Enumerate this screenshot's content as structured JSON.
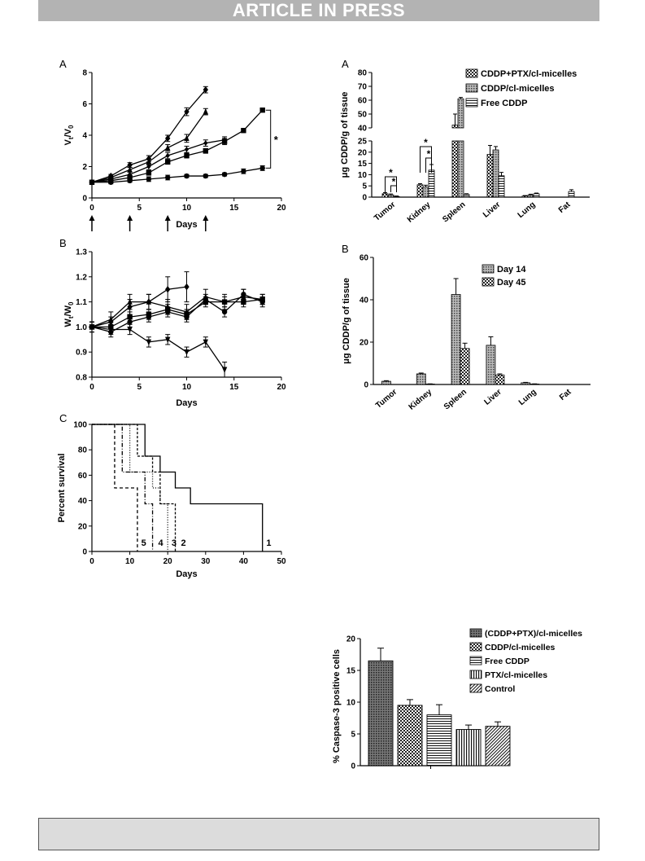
{
  "header": {
    "banner": "ARTICLE IN PRESS"
  },
  "chart_data": [
    {
      "id": "left-A",
      "panel_label": "A",
      "type": "line",
      "xlabel": "Days",
      "ylabel_main": "V",
      "ylabel_sub1": "t",
      "ylabel_mid": "/V",
      "ylabel_sub2": "0",
      "xlim": [
        0,
        20
      ],
      "ylim": [
        0,
        8
      ],
      "xticks": [
        "0",
        "5",
        "10",
        "15",
        "20"
      ],
      "yticks": [
        "0",
        "2",
        "4",
        "6",
        "8"
      ],
      "significance": "*",
      "dosing_days": [
        0,
        4,
        8,
        12
      ],
      "series": [
        {
          "marker": "diamond",
          "x": [
            0,
            2,
            4,
            6,
            8,
            10,
            12
          ],
          "y": [
            1.0,
            1.4,
            2.1,
            2.5,
            3.8,
            5.5,
            6.9
          ],
          "err": [
            0.1,
            0.1,
            0.15,
            0.2,
            0.2,
            0.25,
            0.2
          ]
        },
        {
          "marker": "triangle-up",
          "x": [
            0,
            2,
            4,
            6,
            8,
            10,
            12
          ],
          "y": [
            1.0,
            1.3,
            1.8,
            2.3,
            3.2,
            3.8,
            5.5
          ],
          "err": [
            0.1,
            0.1,
            0.15,
            0.2,
            0.2,
            0.25,
            0.2
          ]
        },
        {
          "marker": "diamond-small",
          "x": [
            0,
            2,
            4,
            6,
            8,
            10,
            12,
            14
          ],
          "y": [
            1.0,
            1.2,
            1.5,
            2.0,
            2.7,
            3.1,
            3.5,
            3.7
          ],
          "err": [
            0.1,
            0.1,
            0.15,
            0.2,
            0.2,
            0.2,
            0.2,
            0.2
          ]
        },
        {
          "marker": "square",
          "x": [
            0,
            2,
            4,
            6,
            8,
            10,
            12,
            14,
            16,
            18
          ],
          "y": [
            1.0,
            1.1,
            1.3,
            1.6,
            2.3,
            2.7,
            3.0,
            3.6,
            4.3,
            5.6
          ],
          "err": [
            0.1,
            0.1,
            0.1,
            0.15,
            0.15,
            0.15,
            0.15,
            0.2,
            0.1,
            0.1
          ]
        },
        {
          "marker": "circle",
          "x": [
            0,
            2,
            4,
            6,
            8,
            10,
            12,
            14,
            16,
            18
          ],
          "y": [
            1.0,
            1.0,
            1.1,
            1.2,
            1.3,
            1.4,
            1.4,
            1.5,
            1.7,
            1.9
          ],
          "err": [
            0.1,
            0.1,
            0.1,
            0.15,
            0.15,
            0.1,
            0.1,
            0.1,
            0.15,
            0.15
          ]
        }
      ]
    },
    {
      "id": "left-B",
      "panel_label": "B",
      "type": "line",
      "xlabel": "Days",
      "ylabel_main": "W",
      "ylabel_sub1": "t",
      "ylabel_mid": "/W",
      "ylabel_sub2": "0",
      "xlim": [
        0,
        20
      ],
      "ylim": [
        0.8,
        1.3
      ],
      "xticks": [
        "0",
        "5",
        "10",
        "15",
        "20"
      ],
      "yticks": [
        "0.8",
        "0.9",
        "1.0",
        "1.1",
        "1.2",
        "1.3"
      ],
      "series": [
        {
          "marker": "diamond",
          "x": [
            0,
            2,
            4,
            6,
            8,
            10
          ],
          "y": [
            1.0,
            1.02,
            1.08,
            1.1,
            1.15,
            1.16
          ],
          "err": [
            0.02,
            0.02,
            0.03,
            0.03,
            0.05,
            0.06
          ]
        },
        {
          "marker": "triangle-up",
          "x": [
            0,
            2,
            4,
            6,
            8,
            10,
            12,
            14,
            16,
            18
          ],
          "y": [
            1.0,
            1.03,
            1.1,
            1.1,
            1.08,
            1.06,
            1.12,
            1.1,
            1.12,
            1.11
          ],
          "err": [
            0.02,
            0.03,
            0.03,
            0.03,
            0.03,
            0.03,
            0.03,
            0.03,
            0.03,
            0.02
          ]
        },
        {
          "marker": "square",
          "x": [
            0,
            2,
            4,
            6,
            8,
            10,
            12,
            14,
            16,
            18
          ],
          "y": [
            1.0,
            1.0,
            1.04,
            1.05,
            1.07,
            1.05,
            1.1,
            1.1,
            1.1,
            1.11
          ],
          "err": [
            0.02,
            0.02,
            0.02,
            0.02,
            0.02,
            0.02,
            0.02,
            0.02,
            0.02,
            0.02
          ]
        },
        {
          "marker": "circle",
          "x": [
            0,
            2,
            4,
            6,
            8,
            10,
            12,
            14,
            16,
            18
          ],
          "y": [
            1.0,
            0.98,
            1.02,
            1.04,
            1.06,
            1.04,
            1.11,
            1.06,
            1.13,
            1.1
          ],
          "err": [
            0.02,
            0.02,
            0.02,
            0.02,
            0.02,
            0.02,
            0.02,
            0.02,
            0.02,
            0.02
          ]
        },
        {
          "marker": "triangle-down",
          "x": [
            0,
            2,
            4,
            6,
            8,
            10,
            12,
            14
          ],
          "y": [
            1.0,
            0.99,
            0.99,
            0.94,
            0.95,
            0.9,
            0.94,
            0.83
          ],
          "err": [
            0.02,
            0.02,
            0.02,
            0.02,
            0.02,
            0.02,
            0.02,
            0.03
          ]
        }
      ]
    },
    {
      "id": "left-C",
      "panel_label": "C",
      "type": "line",
      "subtype": "survival-step",
      "xlabel": "Days",
      "ylabel": "Percent survival",
      "xlim": [
        0,
        50
      ],
      "ylim": [
        0,
        100
      ],
      "xticks": [
        "0",
        "10",
        "20",
        "30",
        "40",
        "50"
      ],
      "yticks": [
        "0",
        "20",
        "40",
        "60",
        "80",
        "100"
      ],
      "series": [
        {
          "label": "1",
          "dash": "",
          "steps": [
            [
              0,
              100
            ],
            [
              14,
              100
            ],
            [
              14,
              75
            ],
            [
              18,
              75
            ],
            [
              18,
              62.5
            ],
            [
              22,
              62.5
            ],
            [
              22,
              50
            ],
            [
              26,
              50
            ],
            [
              26,
              37.5
            ],
            [
              45,
              37.5
            ],
            [
              45,
              0
            ]
          ],
          "label_x": 46,
          "label_y": 7
        },
        {
          "label": "2",
          "dash": "3,2",
          "steps": [
            [
              0,
              100
            ],
            [
              12,
              100
            ],
            [
              12,
              75
            ],
            [
              16,
              75
            ],
            [
              16,
              62.5
            ],
            [
              18,
              62.5
            ],
            [
              18,
              37.5
            ],
            [
              22,
              37.5
            ],
            [
              22,
              0
            ]
          ],
          "label_x": 23.5,
          "label_y": 7
        },
        {
          "label": "3",
          "dash": "1,2",
          "steps": [
            [
              0,
              100
            ],
            [
              10,
              100
            ],
            [
              10,
              62.5
            ],
            [
              16,
              62.5
            ],
            [
              16,
              50
            ],
            [
              18,
              50
            ],
            [
              18,
              37.5
            ],
            [
              20,
              37.5
            ],
            [
              20,
              0
            ]
          ],
          "label_x": 21,
          "label_y": 7
        },
        {
          "label": "4",
          "dash": "5,2,1,2",
          "steps": [
            [
              0,
              100
            ],
            [
              8,
              100
            ],
            [
              8,
              62.5
            ],
            [
              14,
              62.5
            ],
            [
              14,
              37.5
            ],
            [
              16,
              37.5
            ],
            [
              16,
              0
            ]
          ],
          "label_x": 17.5,
          "label_y": 7
        },
        {
          "label": "5",
          "dash": "4,3",
          "steps": [
            [
              0,
              100
            ],
            [
              6,
              100
            ],
            [
              6,
              50
            ],
            [
              12,
              50
            ],
            [
              12,
              0
            ]
          ],
          "label_x": 13,
          "label_y": 7
        }
      ]
    },
    {
      "id": "right-A",
      "panel_label": "A",
      "type": "bar",
      "ylabel": "μg CDDP/g of tissue",
      "categories": [
        "Tumor",
        "Kidney",
        "Spleen",
        "Liver",
        "Lung",
        "Fat"
      ],
      "yticks_low": [
        "0",
        "5",
        "10",
        "15",
        "20",
        "25"
      ],
      "yticks_high": [
        "40",
        "50",
        "60",
        "70",
        "80"
      ],
      "broken_axis": {
        "low": [
          0,
          25
        ],
        "high": [
          40,
          80
        ]
      },
      "significance": [
        "*",
        "*",
        "*",
        "*"
      ],
      "legend_position": "top-right",
      "series": [
        {
          "name": "CDDP+PTX/cl-micelles",
          "pattern": "checker",
          "values": [
            1.5,
            5.5,
            42,
            19,
            0.5,
            0
          ],
          "err": [
            0.5,
            0.5,
            8,
            4,
            0.2,
            0
          ]
        },
        {
          "name": "CDDP/cl-micelles",
          "pattern": "dots",
          "values": [
            1.0,
            4.5,
            61,
            21,
            1.0,
            0
          ],
          "err": [
            0.4,
            0.8,
            1,
            1.5,
            0.3,
            0
          ]
        },
        {
          "name": "Free CDDP",
          "pattern": "hlines",
          "values": [
            0.3,
            12,
            1.2,
            9.5,
            1.5,
            2.5
          ],
          "err": [
            0.2,
            2.5,
            0.3,
            1.5,
            0.3,
            0.8
          ]
        }
      ]
    },
    {
      "id": "right-B",
      "panel_label": "B",
      "type": "bar",
      "ylabel": "μg CDDP/g of tissue",
      "categories": [
        "Tumor",
        "Kidney",
        "Spleen",
        "Liver",
        "Lung",
        "Fat"
      ],
      "ylim": [
        0,
        60
      ],
      "yticks": [
        "0",
        "20",
        "40",
        "60"
      ],
      "legend_position": "top-right",
      "series": [
        {
          "name": "Day 14",
          "pattern": "dots",
          "values": [
            1.5,
            5.0,
            42.5,
            18.5,
            0.8,
            0
          ],
          "err": [
            0.3,
            0.4,
            7.5,
            4,
            0.2,
            0
          ]
        },
        {
          "name": "Day 45",
          "pattern": "checker",
          "values": [
            0,
            0.2,
            17,
            4.5,
            0.2,
            0
          ],
          "err": [
            0,
            0.1,
            2.5,
            0.5,
            0.1,
            0
          ]
        }
      ]
    },
    {
      "id": "right-C",
      "type": "bar",
      "ylabel": "% Caspase-3 positive cells",
      "ylim": [
        0,
        20
      ],
      "yticks": [
        "0",
        "5",
        "10",
        "15",
        "20"
      ],
      "legend_position": "top-right",
      "series": [
        {
          "name": "(CDDP+PTX)/cl-micelles",
          "pattern": "dense",
          "value": 16.5,
          "err": 2.0
        },
        {
          "name": "CDDP/cl-micelles",
          "pattern": "checker",
          "value": 9.5,
          "err": 0.9
        },
        {
          "name": "Free CDDP",
          "pattern": "hlines",
          "value": 8.0,
          "err": 1.6
        },
        {
          "name": "PTX/cl-micelles",
          "pattern": "vlines",
          "value": 5.7,
          "err": 0.7
        },
        {
          "name": "Control",
          "pattern": "diag",
          "value": 6.2,
          "err": 0.7
        }
      ]
    }
  ]
}
